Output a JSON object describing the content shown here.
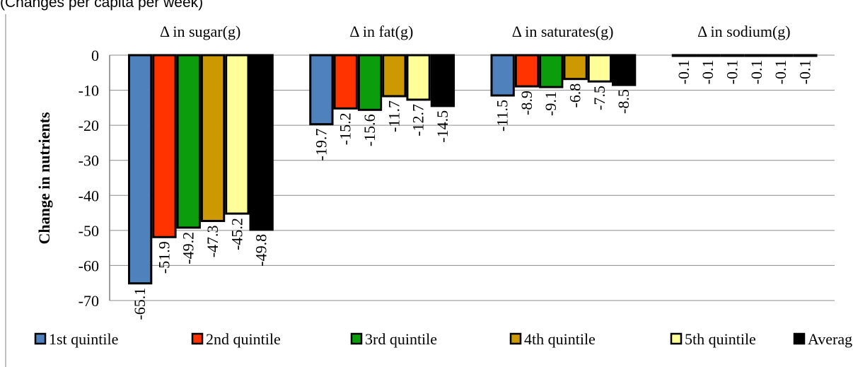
{
  "caption": "(Changes per capita per week)",
  "chart_data": {
    "type": "bar",
    "ylabel": "Change in nutrients",
    "ylim": [
      -70,
      0
    ],
    "yticks": [
      0,
      -10,
      -20,
      -30,
      -40,
      -50,
      -60,
      -70
    ],
    "grid": true,
    "legend_position": "bottom",
    "categories": [
      "Δ in sugar(g)",
      "Δ in fat(g)",
      "Δ in saturates(g)",
      "Δ in sodium(g)"
    ],
    "series": [
      {
        "name": "1st quintile",
        "color": "#4f81bd",
        "values": [
          -65.1,
          -19.7,
          -11.5,
          -0.1
        ]
      },
      {
        "name": "2nd quintile",
        "color": "#ff3300",
        "values": [
          -51.9,
          -15.2,
          -8.9,
          -0.1
        ]
      },
      {
        "name": "3rd quintile",
        "color": "#0c9d0c",
        "values": [
          -49.2,
          -15.6,
          -9.1,
          -0.1
        ]
      },
      {
        "name": "4th quintile",
        "color": "#cc9900",
        "values": [
          -47.3,
          -11.7,
          -6.8,
          -0.1
        ]
      },
      {
        "name": "5th quintile",
        "color": "#ffff99",
        "values": [
          -45.2,
          -12.7,
          -7.5,
          -0.1
        ]
      },
      {
        "name": "Average",
        "color": "#000000",
        "values": [
          -49.8,
          -14.5,
          -8.5,
          -0.1
        ]
      }
    ]
  }
}
